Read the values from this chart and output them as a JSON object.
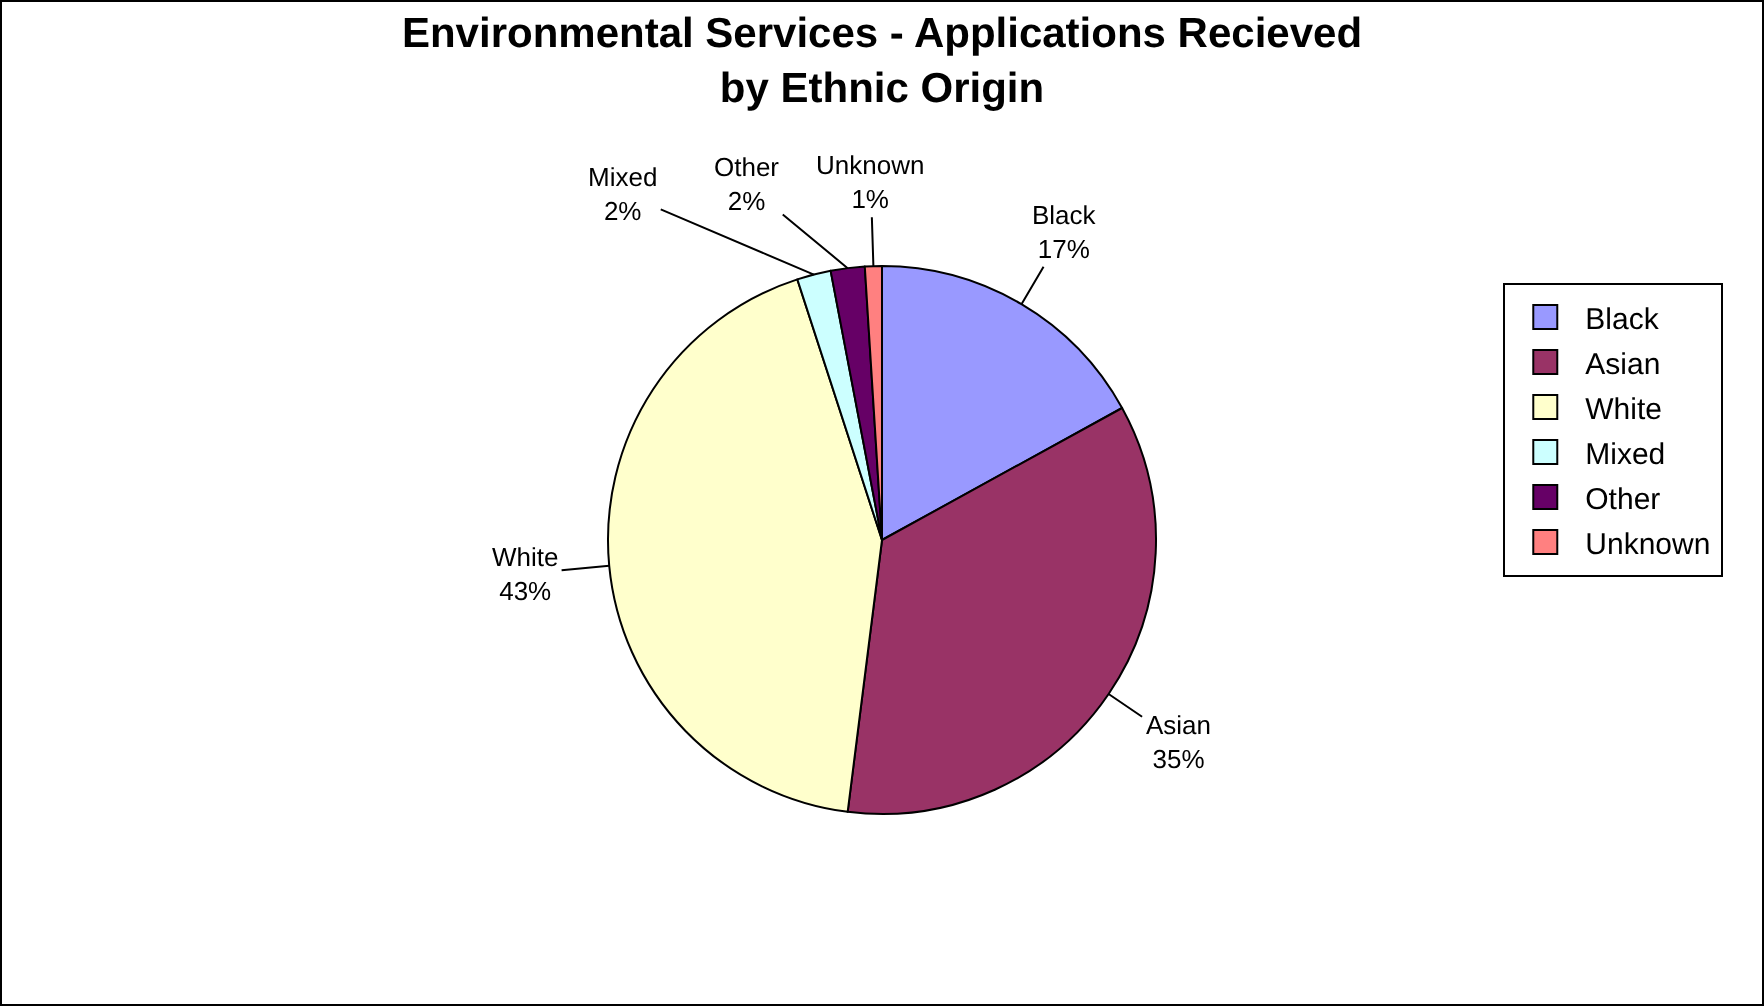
{
  "chart_data": {
    "type": "pie",
    "title": "Environmental Services - Applications Recieved by Ethnic Origin",
    "categories": [
      "Black",
      "Asian",
      "White",
      "Mixed",
      "Other",
      "Unknown"
    ],
    "values": [
      17,
      35,
      43,
      2,
      2,
      1
    ],
    "value_labels": [
      "17%",
      "35%",
      "43%",
      "2%",
      "2%",
      "1%"
    ],
    "colors": [
      "#9999ff",
      "#993366",
      "#ffffcc",
      "#ccffff",
      "#660066",
      "#ff8080"
    ],
    "legend": "right"
  }
}
